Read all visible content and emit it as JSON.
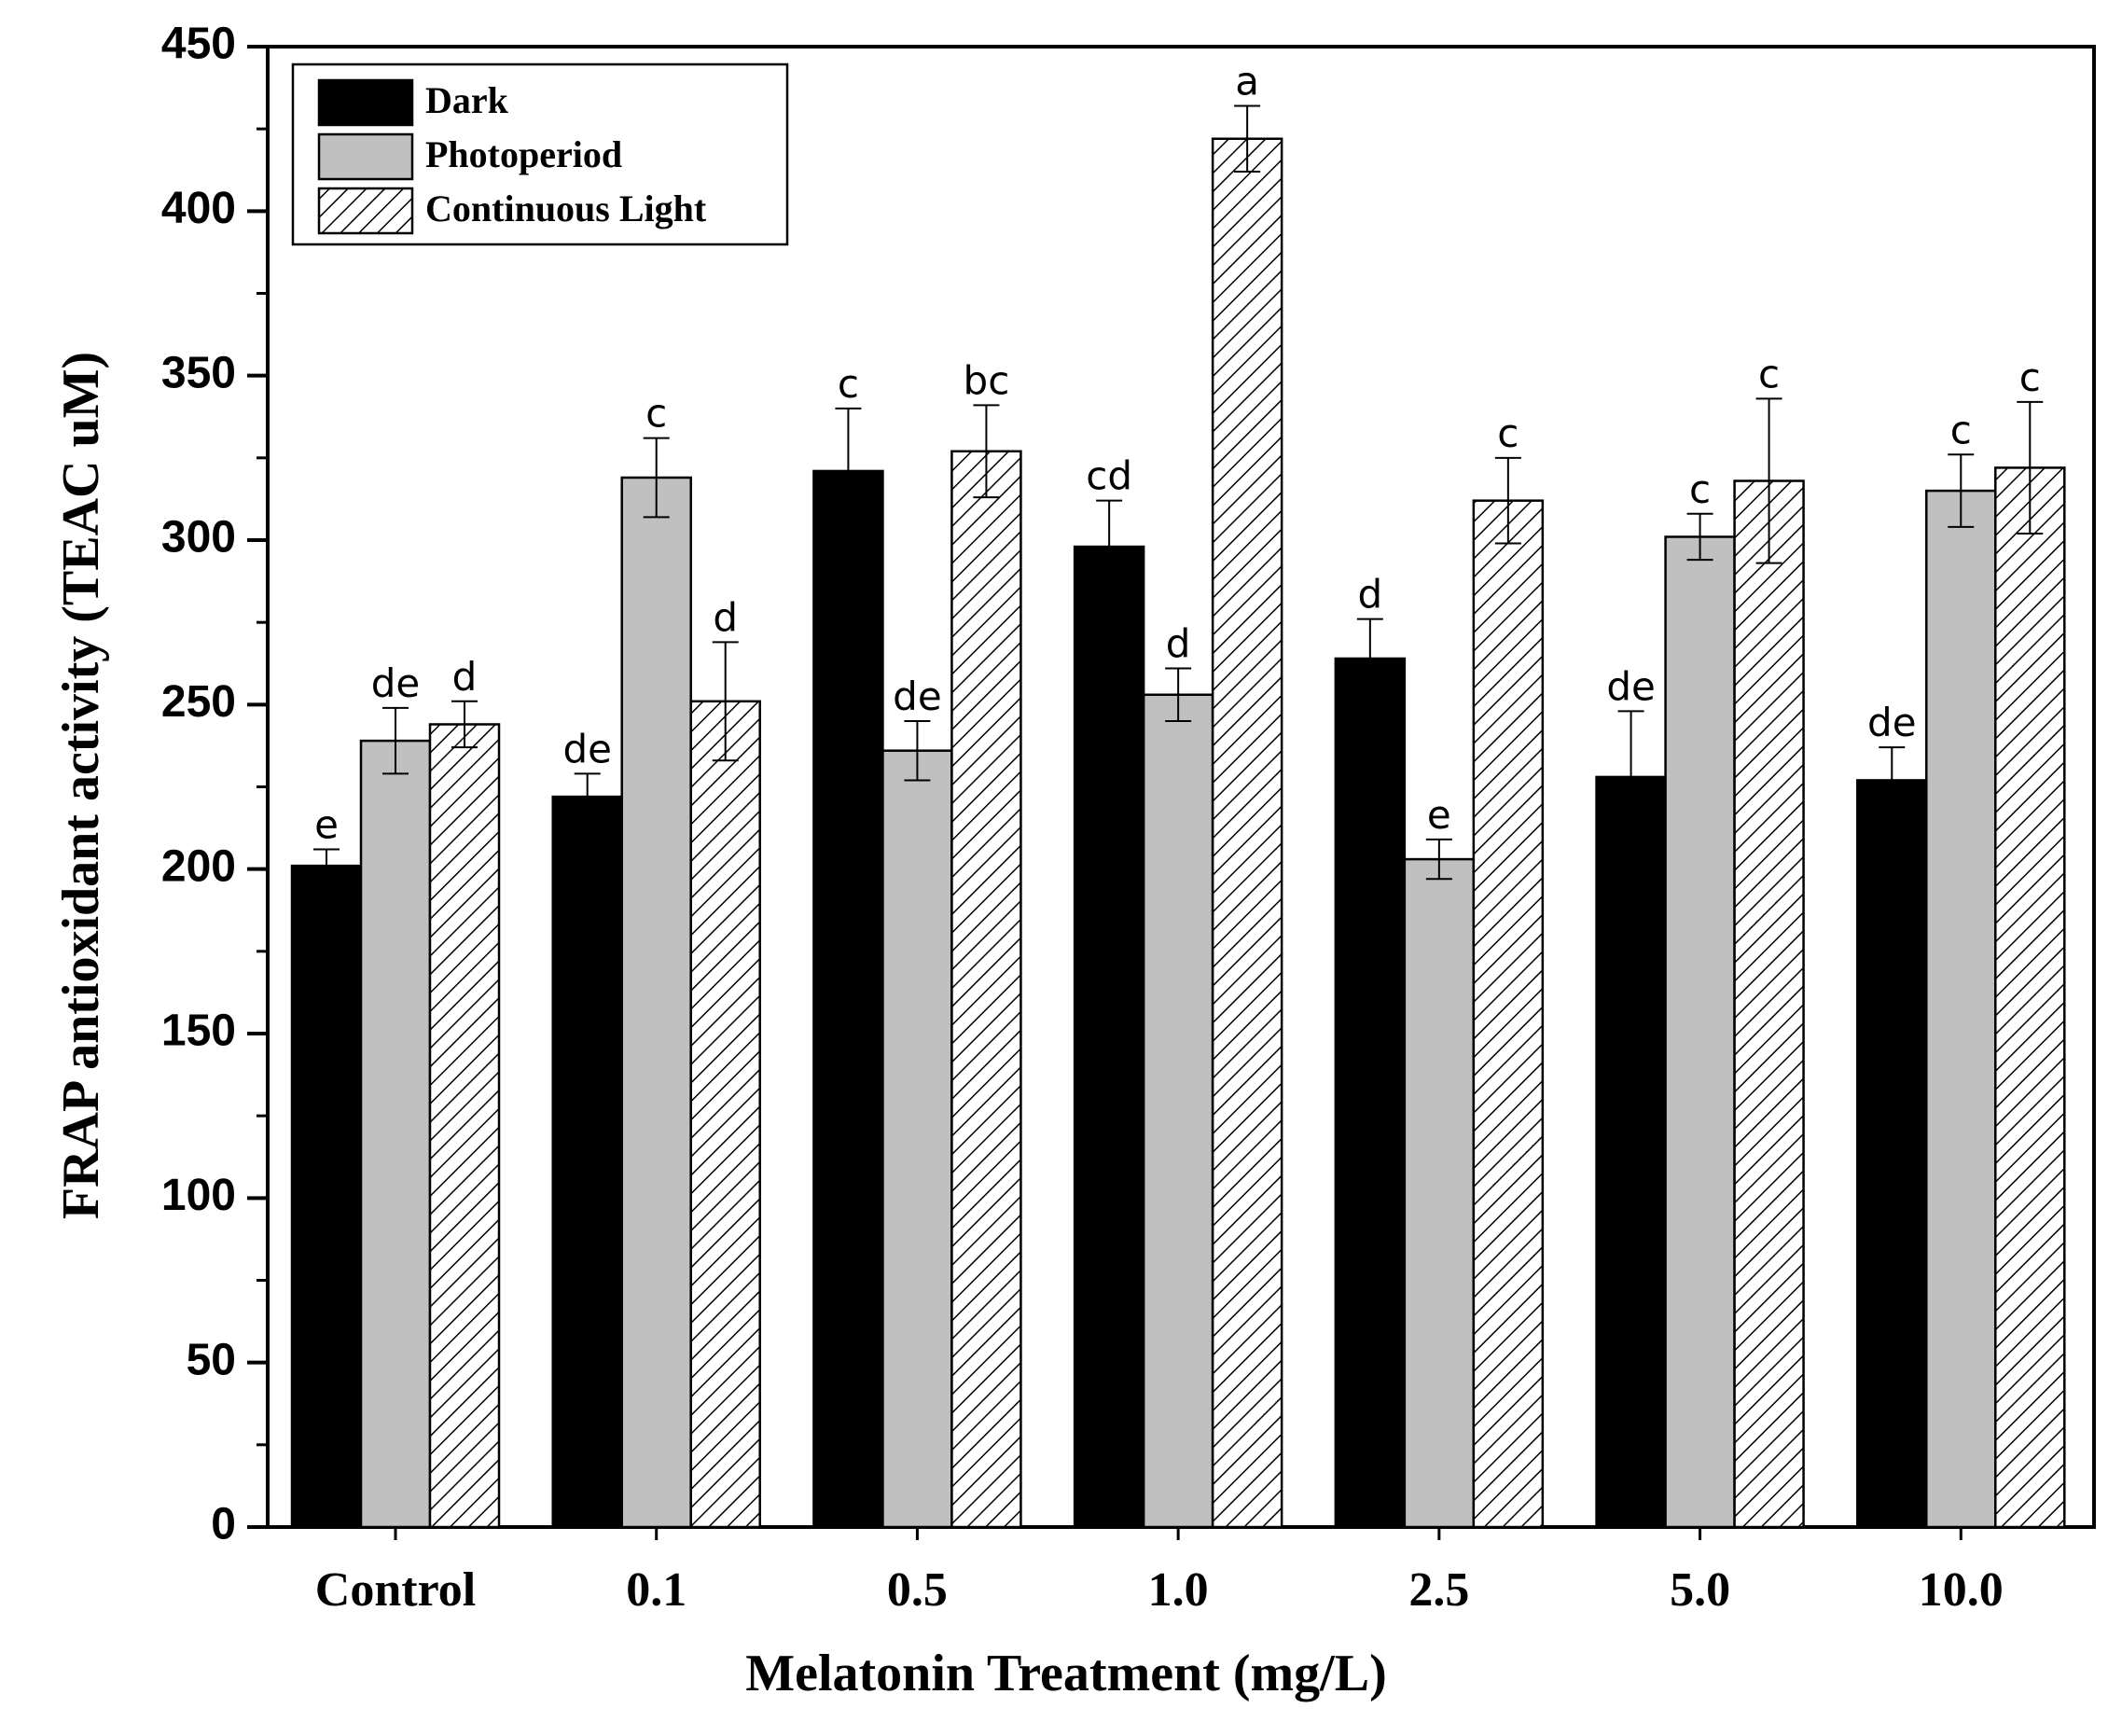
{
  "chart_data": {
    "type": "bar",
    "xlabel": "Melatonin Treatment (mg/L)",
    "ylabel": "FRAP antioxidant activity (TEAC uM)",
    "ylim": [
      0,
      450
    ],
    "yticks": [
      0,
      50,
      100,
      150,
      200,
      250,
      300,
      350,
      400,
      450
    ],
    "categories": [
      "Control",
      "0.1",
      "0.5",
      "1.0",
      "2.5",
      "5.0",
      "10.0"
    ],
    "legend_position": "top-left",
    "series": [
      {
        "name": "Dark",
        "fill": "#000000",
        "pattern": "solid",
        "values": [
          201,
          222,
          321,
          298,
          264,
          228,
          227
        ],
        "errors": [
          5,
          7,
          19,
          14,
          12,
          20,
          10
        ],
        "letters": [
          "e",
          "de",
          "c",
          "cd",
          "d",
          "de",
          "de"
        ]
      },
      {
        "name": "Photoperiod",
        "fill": "#c0c0c0",
        "pattern": "solid",
        "values": [
          239,
          319,
          236,
          253,
          203,
          301,
          315
        ],
        "errors": [
          10,
          12,
          9,
          8,
          6,
          7,
          11
        ],
        "letters": [
          "de",
          "c",
          "de",
          "d",
          "e",
          "c",
          "c"
        ]
      },
      {
        "name": "Continuous Light",
        "fill": "#ffffff",
        "pattern": "hatch",
        "values": [
          244,
          251,
          327,
          422,
          312,
          318,
          322
        ],
        "errors": [
          7,
          18,
          14,
          10,
          13,
          25,
          20
        ],
        "letters": [
          "d",
          "d",
          "bc",
          "a",
          "c",
          "c",
          "c"
        ]
      }
    ]
  }
}
